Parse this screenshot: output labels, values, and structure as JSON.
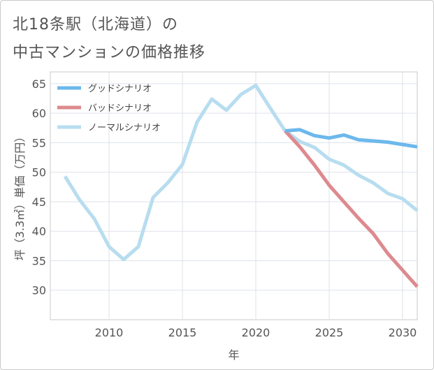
{
  "chart_data": {
    "type": "line",
    "title_line1": "北18条駅（北海道）の",
    "title_line2": "中古マンションの価格推移",
    "xlabel": "年",
    "ylabel": "坪（3.3㎡）単価（万円）",
    "xlim": [
      2006,
      2031
    ],
    "ylim": [
      25,
      67
    ],
    "xticks": [
      2010,
      2015,
      2020,
      2025,
      2030
    ],
    "yticks": [
      30,
      35,
      40,
      45,
      50,
      55,
      60,
      65
    ],
    "grid": true,
    "legend_position": "top-left",
    "series": [
      {
        "name": "グッドシナリオ",
        "color": "#6cb8ec",
        "x": [
          2022,
          2023,
          2024,
          2025,
          2026,
          2027,
          2028,
          2029,
          2030,
          2031
        ],
        "values": [
          57.0,
          57.2,
          56.2,
          55.8,
          56.3,
          55.5,
          55.3,
          55.1,
          54.7,
          54.3
        ]
      },
      {
        "name": "バッドシナリオ",
        "color": "#dd8a8f",
        "x": [
          2022,
          2023,
          2024,
          2025,
          2026,
          2027,
          2028,
          2029,
          2030,
          2031
        ],
        "values": [
          57.0,
          54.3,
          51.2,
          47.8,
          45.0,
          42.2,
          39.6,
          36.2,
          33.4,
          30.6
        ]
      },
      {
        "name": "ノーマルシナリオ",
        "color": "#b7ddef",
        "x": [
          2007,
          2008,
          2009,
          2010,
          2011,
          2012,
          2013,
          2014,
          2015,
          2016,
          2017,
          2018,
          2019,
          2020,
          2021,
          2022,
          2023,
          2024,
          2025,
          2026,
          2027,
          2028,
          2029,
          2030,
          2031
        ],
        "values": [
          49.3,
          45.3,
          42.1,
          37.4,
          35.2,
          37.4,
          45.7,
          48.2,
          51.3,
          58.5,
          62.4,
          60.5,
          63.2,
          64.7,
          60.8,
          57.0,
          55.2,
          54.2,
          52.2,
          51.2,
          49.5,
          48.2,
          46.4,
          45.5,
          43.5
        ]
      }
    ]
  }
}
